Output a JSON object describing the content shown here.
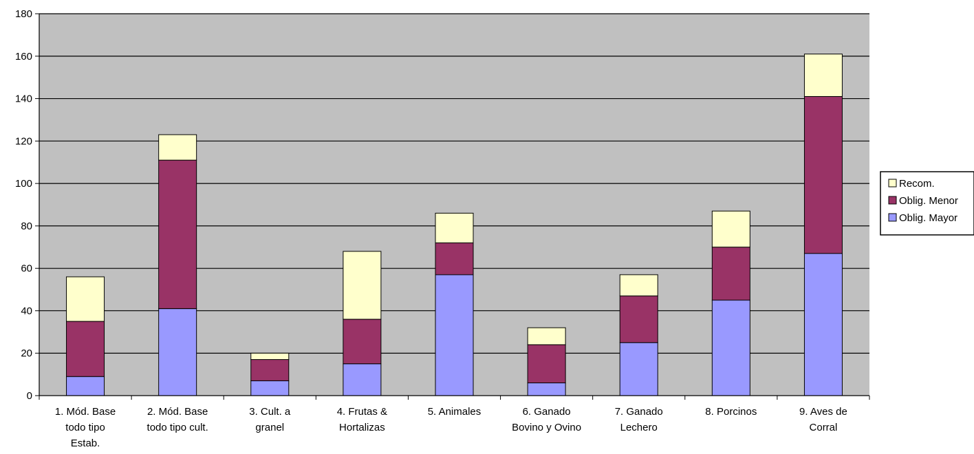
{
  "chart_data": {
    "type": "bar",
    "stacked": true,
    "categories": [
      [
        "1. Mód. Base",
        "todo tipo",
        "Estab."
      ],
      [
        "2. Mód. Base",
        "todo tipo cult."
      ],
      [
        "3. Cult. a",
        "granel"
      ],
      [
        "4. Frutas &",
        "Hortalizas"
      ],
      [
        "5. Animales"
      ],
      [
        "6. Ganado",
        "Bovino y Ovino"
      ],
      [
        "7. Ganado",
        "Lechero"
      ],
      [
        "8. Porcinos"
      ],
      [
        "9. Aves de",
        "Corral"
      ]
    ],
    "series": [
      {
        "name": "Oblig. Mayor",
        "color": "#9999ff",
        "values": [
          9,
          41,
          7,
          15,
          57,
          6,
          25,
          45,
          67
        ]
      },
      {
        "name": "Oblig. Menor",
        "color": "#993366",
        "values": [
          26,
          70,
          10,
          21,
          15,
          18,
          22,
          25,
          74
        ]
      },
      {
        "name": "Recom.",
        "color": "#ffffcc",
        "values": [
          21,
          12,
          3,
          32,
          14,
          8,
          10,
          17,
          20
        ]
      }
    ],
    "ylim": [
      0,
      180
    ],
    "yticks": [
      0,
      20,
      40,
      60,
      80,
      100,
      120,
      140,
      160,
      180
    ],
    "grid": true,
    "plot_background": "#c0c0c0",
    "legend_position": "right",
    "legend_order": [
      "Recom.",
      "Oblig. Menor",
      "Oblig. Mayor"
    ]
  }
}
